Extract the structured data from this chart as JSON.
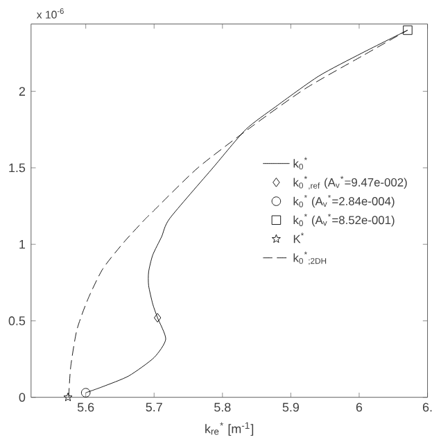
{
  "chart_data": {
    "type": "line",
    "xlabel": "k$_{re}$$^{*}$ [m$^{-1}$]",
    "annotations": [
      "x 10$^{-6}$"
    ],
    "xlim": [
      5.52,
      6.1
    ],
    "xticks": [
      5.6,
      5.7,
      5.8,
      5.9,
      6,
      {
        "value": 6.1,
        "label": "6."
      }
    ],
    "ylim": [
      0,
      2.44
    ],
    "yticks": [
      0,
      0.5,
      1,
      1.5,
      2
    ],
    "legend": "right",
    "grid": false,
    "series": [
      {
        "name": "k$_{0}$$^{*}$",
        "color": "#000000",
        "line_style": "solid",
        "marker": "none",
        "x": [
          5.6,
          5.625,
          5.663,
          5.7,
          5.717,
          5.705,
          5.698,
          5.692,
          5.692,
          5.698,
          5.711,
          5.723,
          5.786,
          5.834,
          5.878,
          5.941,
          6.004,
          6.071
        ],
        "values": [
          0.03,
          0.07,
          0.14,
          0.26,
          0.38,
          0.52,
          0.61,
          0.73,
          0.82,
          0.93,
          1.05,
          1.17,
          1.5,
          1.75,
          1.9,
          2.1,
          2.25,
          2.4
        ]
      },
      {
        "name": "k$_{0}$$^{*}$$_{,ref}$ (A$_{v}$$^{*}$=9.47e-002)",
        "type": "scatter",
        "color": "#000000",
        "marker": "diamond",
        "x": [
          5.705
        ],
        "values": [
          0.52
        ]
      },
      {
        "name": "k$_{0}$$^{*}$ (A$_{v}$$^{*}$=2.84e-004)",
        "type": "scatter",
        "color": "#000000",
        "marker": "circle",
        "x": [
          5.6
        ],
        "values": [
          0.03
        ]
      },
      {
        "name": "k$_{0}$$^{*}$ (A$_{v}$$^{*}$=8.52e-001)",
        "type": "scatter",
        "color": "#000000",
        "marker": "square",
        "x": [
          6.071
        ],
        "values": [
          2.4
        ]
      },
      {
        "name": "K$^{*}$",
        "type": "scatter",
        "color": "#000000",
        "marker": "star",
        "x": [
          5.574
        ],
        "values": [
          0
        ]
      },
      {
        "name": "k$_{0}$$^{*}$$_{;2DH}$",
        "color": "#000000",
        "line_style": "dashed",
        "marker": "none",
        "x": [
          5.575,
          5.578,
          5.587,
          5.603,
          5.625,
          5.657,
          5.688,
          5.695,
          5.764,
          5.846,
          5.922,
          6.004,
          6.071
        ],
        "values": [
          0,
          0.2,
          0.44,
          0.64,
          0.84,
          1.02,
          1.17,
          1.2,
          1.5,
          1.78,
          2.02,
          2.23,
          2.4
        ]
      }
    ]
  }
}
